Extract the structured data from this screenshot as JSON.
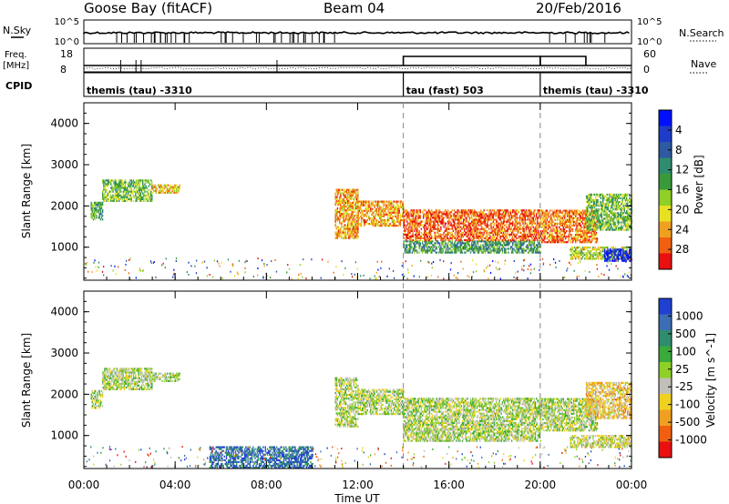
{
  "header": {
    "station": "Goose Bay (fitACF)",
    "beam": "Beam 04",
    "date": "20/Feb/2016"
  },
  "strip_labels": {
    "nsky": "N.Sky",
    "nsearch": "N.Search",
    "freq_line1": "Freq.",
    "freq_line2": "[MHz]",
    "nave": "Nave",
    "cpid": "CPID",
    "nsky_ticks": [
      "10^5",
      "10^0"
    ],
    "nsearch_ticks": [
      "10^5",
      "10^0"
    ],
    "freq_ticks": [
      "18",
      "8"
    ],
    "nave_ticks": [
      "60",
      "0"
    ]
  },
  "cpid_segments": [
    {
      "start_hour": 0,
      "end_hour": 14,
      "label": "themis (tau) -3310"
    },
    {
      "start_hour": 14,
      "end_hour": 20,
      "label": "tau (fast) 503"
    },
    {
      "start_hour": 20,
      "end_hour": 24,
      "label": "themis (tau) -3310"
    }
  ],
  "chart_data": [
    {
      "type": "heatmap",
      "name": "power",
      "ylabel": "Slant Range [km]",
      "ylim": [
        200,
        4500
      ],
      "y_ticks": [
        1000,
        2000,
        3000,
        4000
      ],
      "xlim": [
        0,
        24
      ],
      "colorbar": {
        "label": "Power [dB]",
        "ticks": [
          "4",
          "8",
          "12",
          "16",
          "20",
          "24",
          "28"
        ],
        "colors": [
          "#0010ff",
          "#1f3cc8",
          "#2d5aa0",
          "#2f8c6e",
          "#3a9a3a",
          "#8ecf28",
          "#e8e020",
          "#f0a020",
          "#f06010",
          "#e81010"
        ]
      },
      "echo_regions": [
        {
          "start_hour": 0.3,
          "end_hour": 0.8,
          "r_min": 1650,
          "r_max": 2100,
          "level": 0.55
        },
        {
          "start_hour": 0.8,
          "end_hour": 3.0,
          "r_min": 2100,
          "r_max": 2600,
          "level": 0.5
        },
        {
          "start_hour": 3.0,
          "end_hour": 4.2,
          "r_min": 2300,
          "r_max": 2500,
          "level": 0.3
        },
        {
          "start_hour": 11.0,
          "end_hour": 12.0,
          "r_min": 1200,
          "r_max": 2400,
          "level": 0.25
        },
        {
          "start_hour": 12.0,
          "end_hour": 14.0,
          "r_min": 1500,
          "r_max": 2100,
          "level": 0.25
        },
        {
          "start_hour": 14.0,
          "end_hour": 20.0,
          "r_min": 850,
          "r_max": 1150,
          "level": 0.6
        },
        {
          "start_hour": 14.0,
          "end_hour": 20.0,
          "r_min": 1150,
          "r_max": 1900,
          "level": 0.15
        },
        {
          "start_hour": 20.0,
          "end_hour": 22.5,
          "r_min": 1100,
          "r_max": 1900,
          "level": 0.2
        },
        {
          "start_hour": 21.3,
          "end_hour": 24.0,
          "r_min": 700,
          "r_max": 1000,
          "level": 0.4
        },
        {
          "start_hour": 22.8,
          "end_hour": 24.0,
          "r_min": 650,
          "r_max": 950,
          "level": 0.9
        },
        {
          "start_hour": 22.0,
          "end_hour": 24.0,
          "r_min": 1400,
          "r_max": 2300,
          "level": 0.5
        }
      ]
    },
    {
      "type": "heatmap",
      "name": "velocity",
      "ylabel": "Slant Range [km]",
      "ylim": [
        200,
        4500
      ],
      "y_ticks": [
        1000,
        2000,
        3000,
        4000
      ],
      "xlim": [
        0,
        24
      ],
      "colorbar": {
        "label": "Velocity [m s^-1]",
        "ticks": [
          "1000",
          "500",
          "100",
          "25",
          "-25",
          "-100",
          "-500",
          "-1000"
        ],
        "colors": [
          "#2040d0",
          "#3c6eb4",
          "#2f8c6e",
          "#3aaa3a",
          "#8ecf28",
          "#c0c0b8",
          "#f0d020",
          "#f0a020",
          "#f06010",
          "#e81010"
        ]
      },
      "echo_regions": [
        {
          "start_hour": 0.3,
          "end_hour": 0.8,
          "r_min": 1650,
          "r_max": 2100,
          "level": 0.5
        },
        {
          "start_hour": 0.8,
          "end_hour": 3.0,
          "r_min": 2100,
          "r_max": 2600,
          "level": 0.5
        },
        {
          "start_hour": 3.0,
          "end_hour": 4.2,
          "r_min": 2300,
          "r_max": 2500,
          "level": 0.5
        },
        {
          "start_hour": 11.0,
          "end_hour": 12.0,
          "r_min": 1200,
          "r_max": 2400,
          "level": 0.5
        },
        {
          "start_hour": 12.0,
          "end_hour": 14.0,
          "r_min": 1500,
          "r_max": 2100,
          "level": 0.5
        },
        {
          "start_hour": 14.0,
          "end_hour": 20.0,
          "r_min": 850,
          "r_max": 1150,
          "level": 0.5
        },
        {
          "start_hour": 14.0,
          "end_hour": 20.0,
          "r_min": 1150,
          "r_max": 1900,
          "level": 0.5
        },
        {
          "start_hour": 20.0,
          "end_hour": 22.5,
          "r_min": 1100,
          "r_max": 1900,
          "level": 0.5
        },
        {
          "start_hour": 21.3,
          "end_hour": 24.0,
          "r_min": 700,
          "r_max": 1000,
          "level": 0.45
        },
        {
          "start_hour": 22.0,
          "end_hour": 24.0,
          "r_min": 1400,
          "r_max": 2300,
          "level": 0.35
        },
        {
          "start_hour": 5.5,
          "end_hour": 10.0,
          "r_min": 200,
          "r_max": 700,
          "level": 0.85
        }
      ]
    }
  ],
  "x_axis": {
    "label": "Time UT",
    "ticks": [
      "00:00",
      "04:00",
      "08:00",
      "12:00",
      "16:00",
      "20:00",
      "00:00"
    ]
  },
  "freq_blocks": [
    {
      "start_hour": 14.0,
      "end_hour": 20.0,
      "value_mhz": 18
    },
    {
      "start_hour": 20.0,
      "end_hour": 22.0,
      "value_mhz": 18
    }
  ],
  "change_marker_hours": [
    14.0,
    20.0
  ]
}
